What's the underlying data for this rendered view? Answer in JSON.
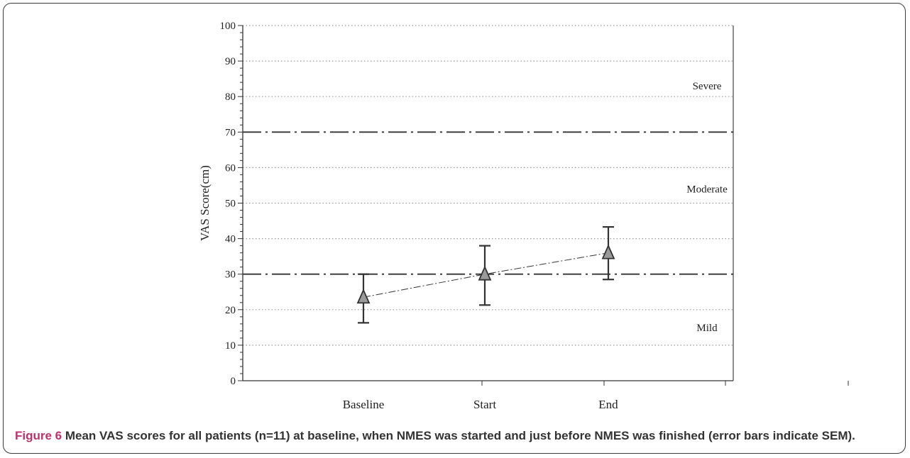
{
  "chart_data": {
    "type": "line",
    "categories": [
      "Baseline",
      "Start",
      "End"
    ],
    "series": [
      {
        "values": [
          23.5,
          30,
          36
        ],
        "error_upper": [
          30,
          38,
          43.3
        ],
        "error_lower": [
          16.3,
          21.3,
          28.5
        ],
        "marker": "triangle",
        "line_style": "dash-dot"
      }
    ],
    "ylabel": "VAS Score(cm)",
    "xlabel": "",
    "ylim": [
      0,
      100
    ],
    "yticks": [
      0,
      10,
      20,
      30,
      40,
      50,
      60,
      70,
      80,
      90,
      100
    ],
    "gridlines": [
      10,
      20,
      40,
      50,
      60,
      80,
      90,
      100
    ],
    "threshold_lines": [
      30,
      70
    ],
    "regions": [
      {
        "label": "Severe",
        "y": 83
      },
      {
        "label": "Moderate",
        "y": 54
      },
      {
        "label": "Mild",
        "y": 15
      }
    ],
    "colors": {
      "marker_fill": "#9a9a9a",
      "line": "#333333",
      "grid": "#999999"
    }
  },
  "caption": {
    "label": "Figure 6",
    "text": "Mean VAS scores for all patients (n=11) at baseline, when NMES was started and just before NMES was finished (error bars indicate SEM)."
  }
}
